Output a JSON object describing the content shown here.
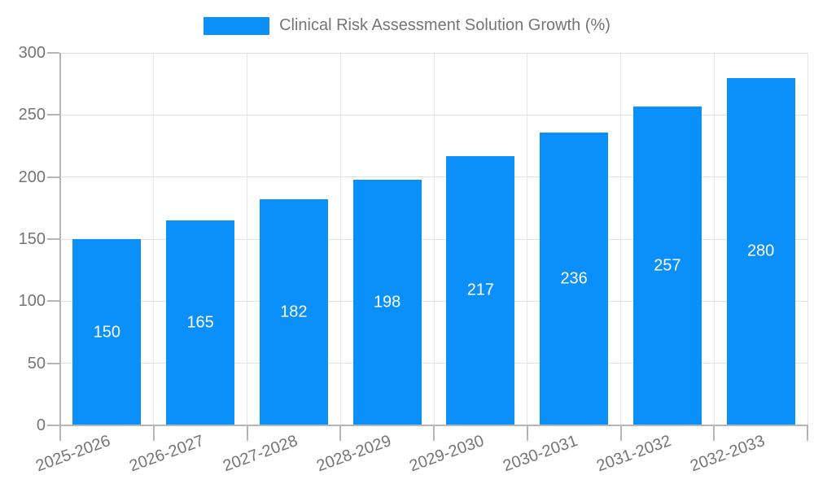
{
  "chart_data": {
    "type": "bar",
    "title": "Clinical Risk Assessment Solution Growth (%)",
    "categories": [
      "2025-2026",
      "2026-2027",
      "2027-2028",
      "2028-2029",
      "2029-2030",
      "2030-2031",
      "2031-2032",
      "2032-2033"
    ],
    "values": [
      150,
      165,
      182,
      198,
      217,
      236,
      257,
      280
    ],
    "xlabel": "",
    "ylabel": "",
    "ylim": [
      0,
      300
    ],
    "yticks": [
      0,
      50,
      100,
      150,
      200,
      250,
      300
    ],
    "grid": true,
    "legend_position": "top",
    "value_label_position": "inside-center",
    "colors": {
      "bar": "#0a90f8",
      "value_label": "#ffffff",
      "axis_line": "#b5b5b5",
      "gridline": "#e2e2e2",
      "tick_text": "#757575",
      "legend_text": "#757575",
      "background": "#ffffff"
    }
  }
}
